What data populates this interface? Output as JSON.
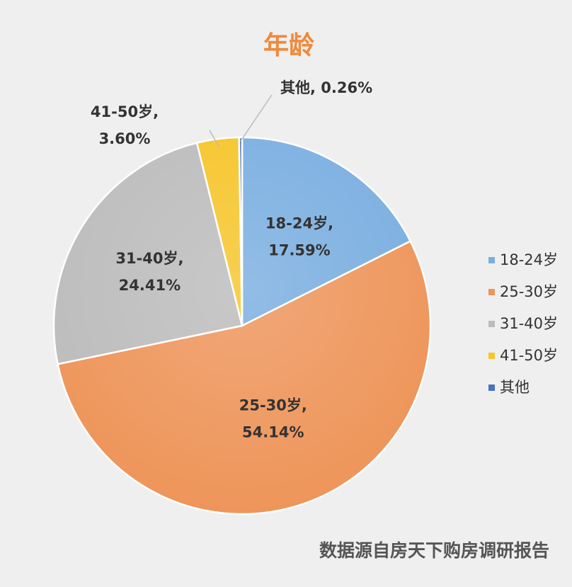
{
  "chart_data": {
    "type": "pie",
    "title": "年龄",
    "source": "数据源自房天下购房调研报告",
    "slices": [
      {
        "label": "18-24岁",
        "value": 17.59,
        "display": "17.59%",
        "color": "#7aaee0"
      },
      {
        "label": "25-30岁",
        "value": 54.14,
        "display": "54.14%",
        "color": "#ee955a"
      },
      {
        "label": "31-40岁",
        "value": 24.41,
        "display": "24.41%",
        "color": "#bcbcbc"
      },
      {
        "label": "41-50岁",
        "value": 3.6,
        "display": "3.60%",
        "color": "#f6c52a"
      },
      {
        "label": "其他",
        "value": 0.26,
        "display": "0.26%",
        "color": "#4a73bc"
      }
    ],
    "legend_position": "right",
    "colors": {
      "title": "#ee8a3c",
      "text": "#333333",
      "source": "#555555"
    }
  }
}
